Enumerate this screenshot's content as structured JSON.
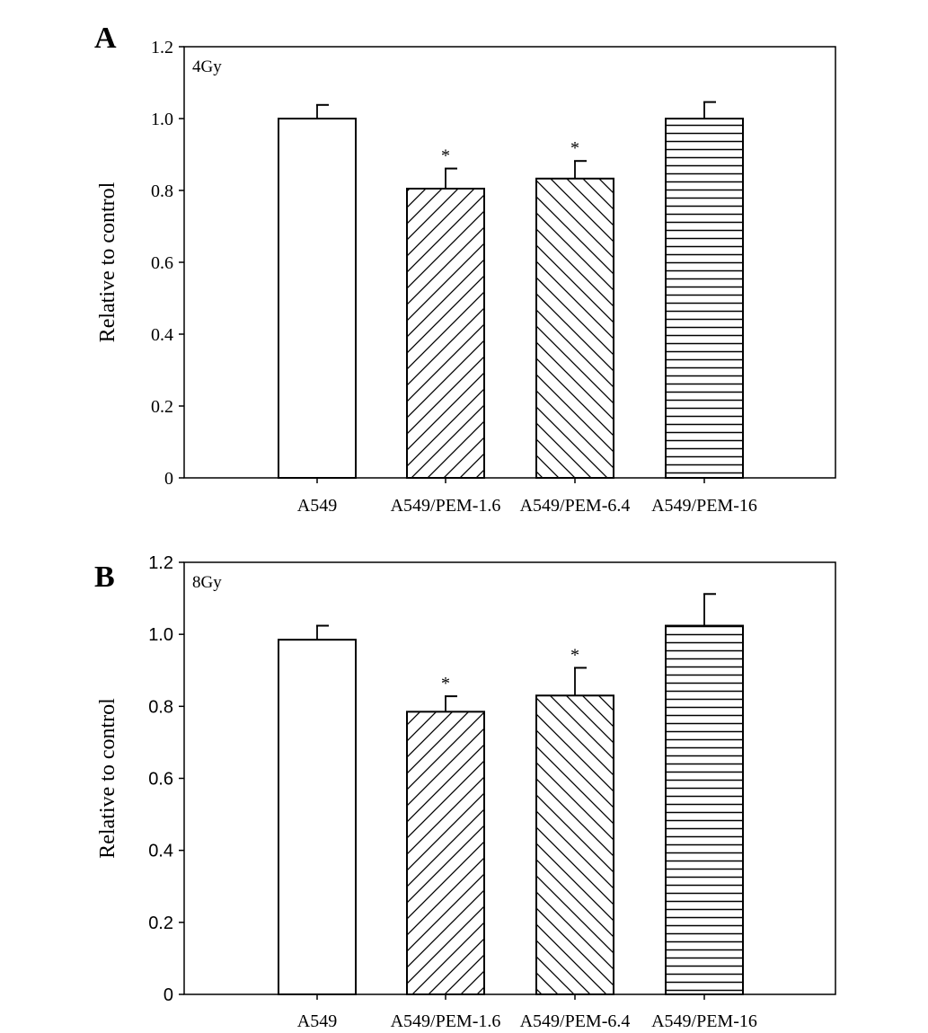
{
  "chart_data": [
    {
      "type": "bar",
      "panel_label": "A",
      "annotation": "4Gy",
      "ylabel": "Relative to control",
      "xlabel": "",
      "ylim": [
        0,
        1.2
      ],
      "yticks": [
        "0",
        "0.2",
        "0.4",
        "0.6",
        "0.8",
        "1.0",
        "1.2"
      ],
      "categories": [
        "A549",
        "A549/PEM-1.6",
        "A549/PEM-6.4",
        "A549/PEM-16"
      ],
      "values": [
        1.0,
        0.805,
        0.833,
        1.0
      ],
      "error_upper": [
        1.038,
        0.861,
        0.882,
        1.046
      ],
      "significance": [
        "",
        "*",
        "*",
        ""
      ],
      "patterns": [
        "none",
        "diagonal-forward",
        "diagonal-back",
        "horizontal"
      ],
      "grid": false,
      "legend": "none"
    },
    {
      "type": "bar",
      "panel_label": "B",
      "annotation": "8Gy",
      "ylabel": "Relative to control",
      "xlabel": "",
      "ylim": [
        0,
        1.2
      ],
      "yticks": [
        "0",
        "0.2",
        "0.4",
        "0.6",
        "0.8",
        "1.0",
        "1.2"
      ],
      "categories": [
        "A549",
        "A549/PEM-1.6",
        "A549/PEM-6.4",
        "A549/PEM-16"
      ],
      "values": [
        0.985,
        0.785,
        0.83,
        1.024
      ],
      "error_upper": [
        1.024,
        0.828,
        0.907,
        1.112
      ],
      "significance": [
        "",
        "*",
        "*",
        ""
      ],
      "patterns": [
        "none",
        "diagonal-forward",
        "diagonal-back",
        "horizontal"
      ],
      "grid": false,
      "legend": "none"
    }
  ]
}
